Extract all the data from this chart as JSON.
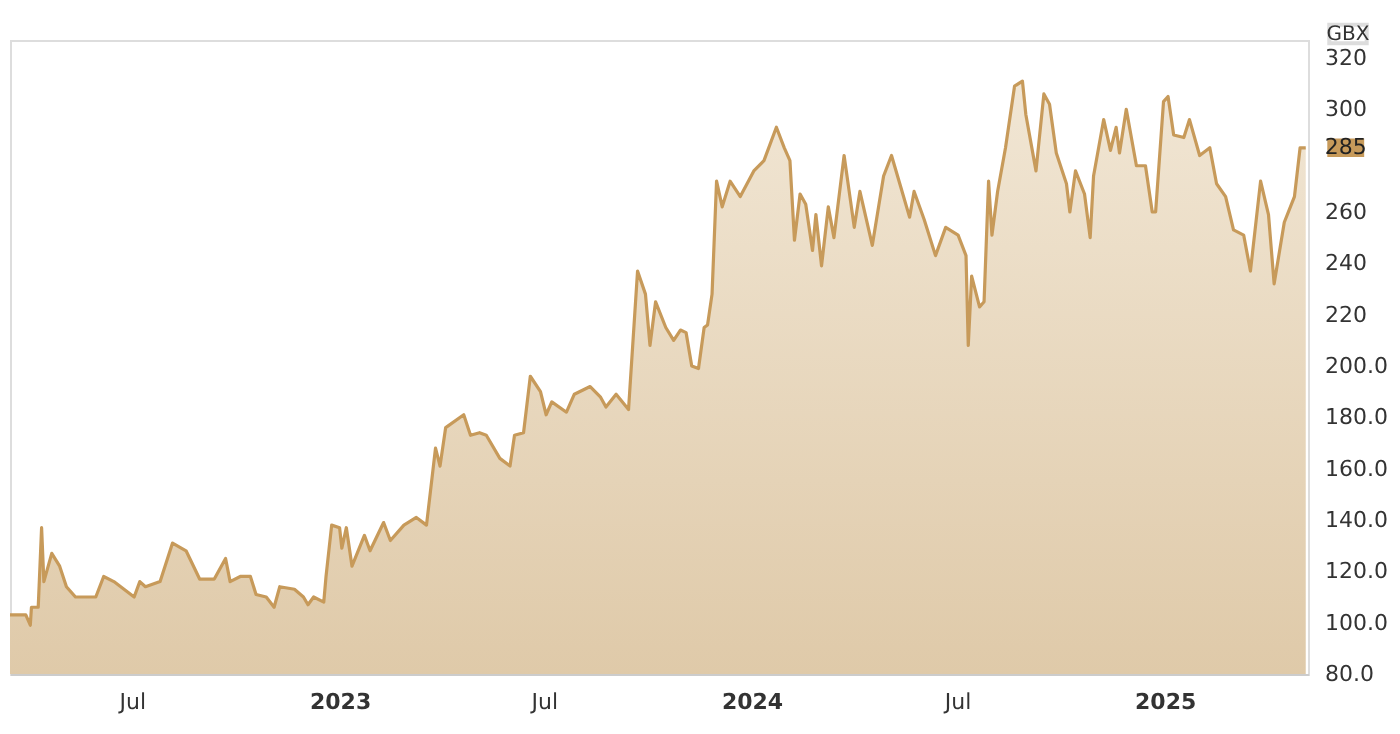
{
  "chart_data": {
    "type": "area",
    "ylabel": "GBX",
    "xlim": [
      "2022-03-15",
      "2025-05-08"
    ],
    "ylim": [
      80,
      327
    ],
    "xticks": [
      {
        "value": "2022-07-01",
        "label": "Jul"
      },
      {
        "value": "2023-01-01",
        "label": "2023"
      },
      {
        "value": "2023-07-01",
        "label": "Jul"
      },
      {
        "value": "2024-01-01",
        "label": "2024"
      },
      {
        "value": "2024-07-01",
        "label": "Jul"
      },
      {
        "value": "2025-01-01",
        "label": "2025"
      }
    ],
    "yticks": [
      {
        "value": 80,
        "label": "80.0"
      },
      {
        "value": 100,
        "label": "100.0"
      },
      {
        "value": 120,
        "label": "120.0"
      },
      {
        "value": 140,
        "label": "140.0"
      },
      {
        "value": 160,
        "label": "160.0"
      },
      {
        "value": 180,
        "label": "180.0"
      },
      {
        "value": 200,
        "label": "200.0"
      },
      220,
      240,
      260,
      300,
      320
    ],
    "grid": false,
    "annotations": [
      {
        "text": "285",
        "x": "2025-05-06",
        "y": 285
      }
    ],
    "x": [
      "2022-03-15",
      "2022-03-29",
      "2022-04-02",
      "2022-04-03",
      "2022-04-09",
      "2022-04-12",
      "2022-04-14",
      "2022-04-21",
      "2022-04-28",
      "2022-05-04",
      "2022-05-12",
      "2022-05-30",
      "2022-06-06",
      "2022-06-15",
      "2022-07-03",
      "2022-07-08",
      "2022-07-13",
      "2022-07-26",
      "2022-08-06",
      "2022-08-18",
      "2022-08-30",
      "2022-09-12",
      "2022-09-22",
      "2022-09-26",
      "2022-10-05",
      "2022-10-14",
      "2022-10-19",
      "2022-10-28",
      "2022-11-04",
      "2022-11-09",
      "2022-11-22",
      "2022-11-30",
      "2022-12-04",
      "2022-12-09",
      "2022-12-18",
      "2022-12-20",
      "2022-12-25",
      "2023-01-01",
      "2023-01-03",
      "2023-01-07",
      "2023-01-12",
      "2023-01-23",
      "2023-01-28",
      "2023-02-09",
      "2023-02-15",
      "2023-02-27",
      "2023-03-10",
      "2023-03-19",
      "2023-03-27",
      "2023-03-31",
      "2023-04-05",
      "2023-04-21",
      "2023-04-27",
      "2023-05-05",
      "2023-05-11",
      "2023-05-23",
      "2023-06-01",
      "2023-06-05",
      "2023-06-13",
      "2023-06-19",
      "2023-06-28",
      "2023-07-03",
      "2023-07-08",
      "2023-07-21",
      "2023-07-28",
      "2023-08-11",
      "2023-08-20",
      "2023-08-25",
      "2023-09-03",
      "2023-09-14",
      "2023-09-22",
      "2023-09-29",
      "2023-10-03",
      "2023-10-08",
      "2023-10-17",
      "2023-10-24",
      "2023-10-30",
      "2023-11-04",
      "2023-11-09",
      "2023-11-15",
      "2023-11-20",
      "2023-11-23",
      "2023-11-27",
      "2023-12-01",
      "2023-12-06",
      "2023-12-13",
      "2023-12-22",
      "2024-01-03",
      "2024-01-12",
      "2024-01-23",
      "2024-01-30",
      "2024-02-04",
      "2024-02-08",
      "2024-02-13",
      "2024-02-18",
      "2024-02-24",
      "2024-02-27",
      "2024-03-03",
      "2024-03-09",
      "2024-03-14",
      "2024-03-23",
      "2024-04-01",
      "2024-04-06",
      "2024-04-17",
      "2024-04-27",
      "2024-05-04",
      "2024-05-12",
      "2024-05-20",
      "2024-05-24",
      "2024-06-02",
      "2024-06-12",
      "2024-06-21",
      "2024-07-02",
      "2024-07-09",
      "2024-07-11",
      "2024-07-14",
      "2024-07-21",
      "2024-07-25",
      "2024-07-29",
      "2024-08-01",
      "2024-08-06",
      "2024-08-13",
      "2024-08-21",
      "2024-08-28",
      "2024-08-31",
      "2024-09-09",
      "2024-09-16",
      "2024-09-21",
      "2024-09-27",
      "2024-10-06",
      "2024-10-09",
      "2024-10-14",
      "2024-10-22",
      "2024-10-27",
      "2024-10-30",
      "2024-11-08",
      "2024-11-14",
      "2024-11-19",
      "2024-11-22",
      "2024-11-28",
      "2024-12-07",
      "2024-12-15",
      "2024-12-21",
      "2024-12-24",
      "2024-12-31",
      "2025-01-04",
      "2025-01-09",
      "2025-01-18",
      "2025-01-23",
      "2025-02-01",
      "2025-02-10",
      "2025-02-16",
      "2025-02-24",
      "2025-03-03",
      "2025-03-12",
      "2025-03-18",
      "2025-03-27",
      "2025-04-03",
      "2025-04-08",
      "2025-04-17",
      "2025-04-26",
      "2025-05-01",
      "2025-05-06"
    ],
    "series": [
      {
        "color": "#c79a5a",
        "values": [
          103,
          103,
          99,
          106,
          106,
          137,
          116,
          127,
          122,
          114,
          110,
          110,
          118,
          116,
          110,
          116,
          114,
          116,
          131,
          128,
          117,
          117,
          125,
          116,
          118,
          118,
          111,
          110,
          106,
          114,
          113,
          110,
          107,
          110,
          108,
          118,
          138,
          137,
          129,
          137,
          122,
          134,
          128,
          139,
          132,
          138,
          141,
          138,
          168,
          161,
          176,
          181,
          173,
          174,
          173,
          164,
          161,
          173,
          174,
          196,
          190,
          181,
          186,
          182,
          189,
          192,
          188,
          184,
          189,
          183,
          237,
          228,
          208,
          225,
          215,
          210,
          214,
          213,
          200,
          199,
          215,
          216,
          228,
          272,
          262,
          272,
          266,
          276,
          280,
          293,
          285,
          280,
          249,
          267,
          263,
          245,
          259,
          239,
          262,
          250,
          282,
          254,
          268,
          247,
          274,
          282,
          270,
          258,
          268,
          257,
          243,
          254,
          251,
          243,
          208,
          235,
          223,
          225,
          272,
          251,
          268,
          285,
          309,
          311,
          298,
          276,
          306,
          302,
          283,
          271,
          260,
          276,
          267,
          250,
          274,
          296,
          284,
          293,
          283,
          300,
          278,
          278,
          260,
          260,
          303,
          305,
          290,
          289,
          296,
          282,
          285,
          271,
          266,
          253,
          251,
          237,
          272,
          259,
          232,
          256,
          266,
          285,
          285
        ]
      }
    ]
  }
}
